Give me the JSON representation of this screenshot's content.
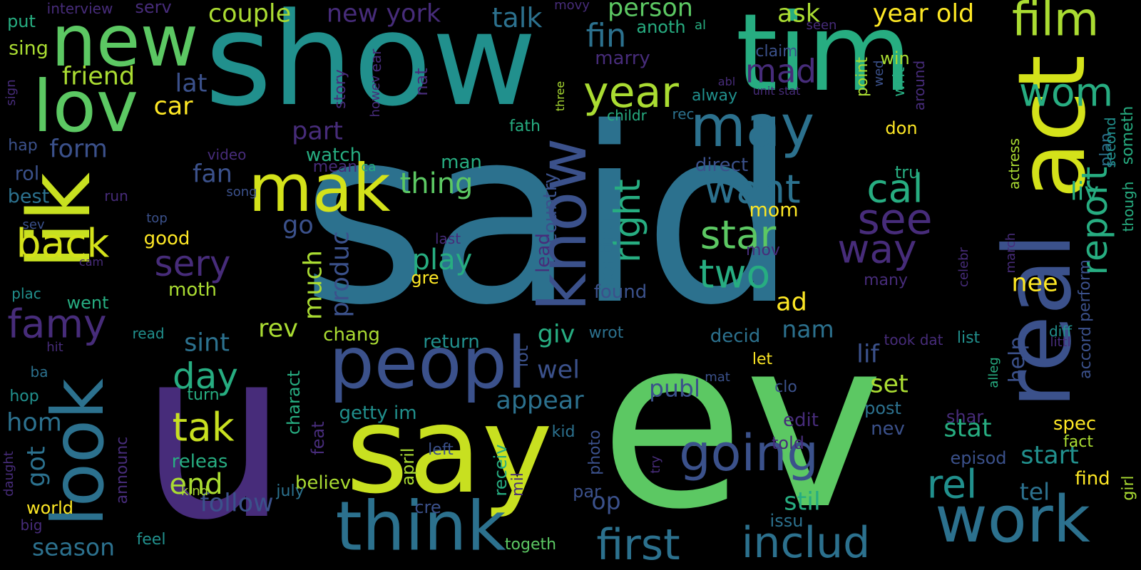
{
  "colors": {
    "background": "#000000",
    "palette": [
      "#440154",
      "#472c7a",
      "#3b518b",
      "#2c718e",
      "#21908d",
      "#27ad81",
      "#5cc863",
      "#aadc32",
      "#fde725"
    ]
  },
  "words": [
    "said",
    "ev",
    "u",
    "say",
    "show",
    "tim",
    "act",
    "real",
    "lik",
    "new",
    "lov",
    "look",
    "peopl",
    "think",
    "work",
    "mak",
    "know",
    "may",
    "year",
    "going",
    "first",
    "includ",
    "film",
    "wom",
    "report",
    "see",
    "way",
    "want",
    "star",
    "two",
    "right",
    "cal",
    "rel",
    "mad",
    "fin",
    "talk",
    "back",
    "famy",
    "sery",
    "day",
    "tak",
    "end",
    "play",
    "thing",
    "person",
    "couple",
    "ask",
    "year old",
    "new york",
    "friend",
    "lat",
    "car",
    "form",
    "fan",
    "go",
    "much",
    "produc",
    "rev",
    "sint",
    "giv",
    "wel",
    "appear",
    "follow",
    "stil",
    "season",
    "start",
    "stat",
    "set",
    "lif",
    "nam",
    "ad",
    "nee",
    "help",
    "liv",
    "mom",
    "publ",
    "op",
    "hom",
    "got",
    "rol",
    "best",
    "sing",
    "put",
    "serv",
    "interview",
    "fath",
    "watch",
    "part",
    "direct",
    "continu",
    "country",
    "lead",
    "found",
    "decid",
    "chang",
    "return",
    "getty im",
    "believ",
    "releas",
    "turn",
    "charact",
    "announc",
    "feat",
    "april",
    "receiv",
    "cre",
    "kid",
    "lot",
    "left",
    "photo",
    "mil",
    "par",
    "edit",
    "told",
    "nev",
    "post",
    "shar",
    "episod",
    "tel",
    "find",
    "spec",
    "fact",
    "girl",
    "accord",
    "perform",
    "plan",
    "someth",
    "second",
    "though",
    "tru",
    "don",
    "diff",
    "littl",
    "list",
    "took dat",
    "celebr",
    "mov",
    "mean",
    "video",
    "song",
    "top",
    "run",
    "good",
    "moth",
    "gre",
    "last",
    "man",
    "ca",
    "marry",
    "anoth",
    "al",
    "seen",
    "movy",
    "ear",
    "nat",
    "story",
    "howev",
    "claim",
    "unit stat",
    "abl",
    "alway",
    "childr",
    "rec",
    "three",
    "around",
    "writ",
    "point",
    "wed",
    "win",
    "actress",
    "march",
    "many",
    "alleg",
    "clo",
    "mat",
    "issu",
    "try",
    "let",
    "wrot",
    "read",
    "hit",
    "ba",
    "hop",
    "daught",
    "big",
    "world",
    "feel",
    "july",
    "kind",
    "togeth",
    "sign",
    "hap",
    "sev",
    "cam",
    "plac",
    "went"
  ]
}
